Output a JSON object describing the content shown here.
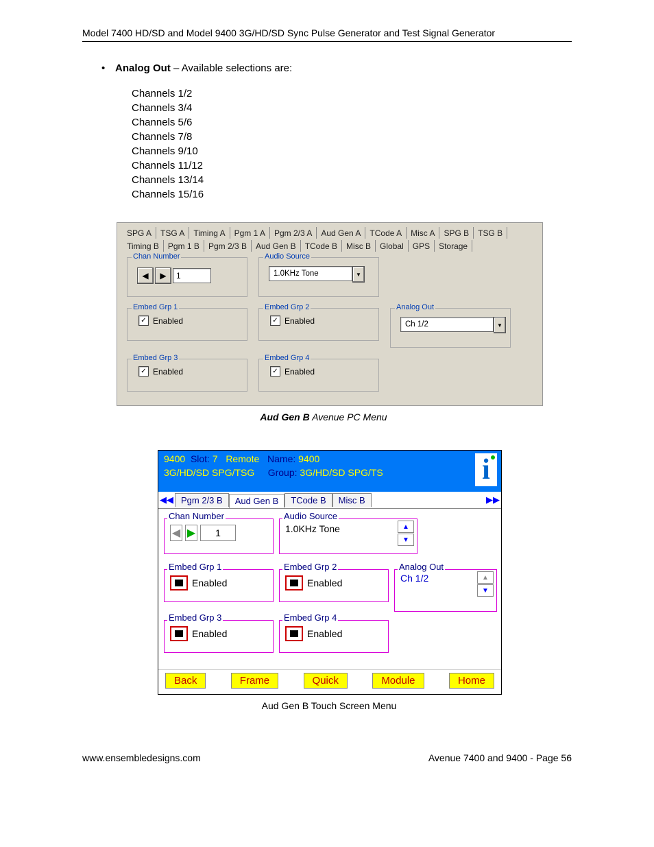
{
  "header": "Model 7400 HD/SD and Model 9400 3G/HD/SD Sync Pulse Generator and Test Signal Generator",
  "bullet": {
    "label": "Analog Out",
    "rest": " – Available selections are:"
  },
  "channels": [
    "Channels 1/2",
    "Channels 3/4",
    "Channels 5/6",
    "Channels 7/8",
    "Channels 9/10",
    "Channels 11/12",
    "Channels 13/14",
    "Channels 15/16"
  ],
  "win": {
    "tabs_row1": [
      "SPG A",
      "TSG A",
      "Timing A",
      "Pgm 1 A",
      "Pgm 2/3 A",
      "Aud Gen A",
      "TCode A",
      "Misc A",
      "SPG B",
      "TSG B"
    ],
    "tabs_row2": [
      "Timing B",
      "Pgm 1 B",
      "Pgm 2/3 B",
      "Aud Gen B",
      "TCode B",
      "Misc B",
      "Global",
      "GPS",
      "Storage"
    ],
    "selected_tab": "Aud Gen B",
    "groups": {
      "chan_number": {
        "label": "Chan Number",
        "value": "1"
      },
      "audio_source": {
        "label": "Audio Source",
        "value": "1.0KHz Tone"
      },
      "embed1": {
        "label": "Embed Grp 1",
        "text": "Enabled",
        "checked": true
      },
      "embed2": {
        "label": "Embed Grp 2",
        "text": "Enabled",
        "checked": true
      },
      "embed3": {
        "label": "Embed Grp 3",
        "text": "Enabled",
        "checked": true
      },
      "embed4": {
        "label": "Embed Grp 4",
        "text": "Enabled",
        "checked": true
      },
      "analog_out": {
        "label": "Analog Out",
        "value": "Ch 1/2"
      }
    }
  },
  "caption1": {
    "b": "Aud Gen B",
    "i": " Avenue PC Menu"
  },
  "touch": {
    "title": {
      "model": "9400",
      "slot_lbl": "Slot:",
      "slot": "7",
      "remote": "Remote",
      "name_lbl": "Name:",
      "name": "9400"
    },
    "line2": {
      "left": "3G/HD/SD SPG/TSG",
      "group_lbl": "Group:",
      "group": "3G/HD/SD SPG/TS"
    },
    "tabs": [
      "Pgm 2/3 B",
      "Aud Gen B",
      "TCode B",
      "Misc B"
    ],
    "selected_tab": "Aud Gen B",
    "chan_number": {
      "label": "Chan Number",
      "value": "1"
    },
    "audio_source": {
      "label": "Audio Source",
      "value": "1.0KHz Tone"
    },
    "embed1": {
      "label": "Embed Grp 1",
      "text": "Enabled"
    },
    "embed2": {
      "label": "Embed Grp 2",
      "text": "Enabled"
    },
    "embed3": {
      "label": "Embed Grp 3",
      "text": "Enabled"
    },
    "embed4": {
      "label": "Embed Grp 4",
      "text": "Enabled"
    },
    "analog_out": {
      "label": "Analog Out",
      "value": "Ch 1/2"
    },
    "bottom": [
      "Back",
      "Frame",
      "Quick",
      "Module",
      "Home"
    ]
  },
  "caption2": {
    "b": "Aud Gen B",
    "i": " Touch Screen Menu"
  },
  "footer": {
    "left": "www.ensembledesigns.com",
    "right": "Avenue 7400 and 9400 - Page 56"
  }
}
